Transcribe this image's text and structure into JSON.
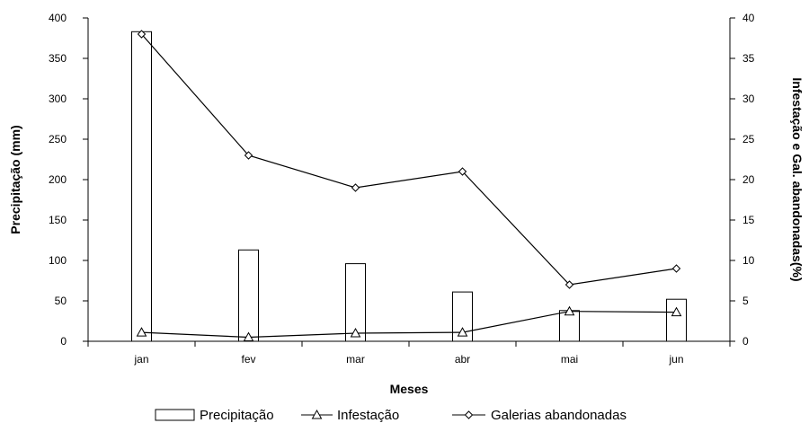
{
  "chart_data": {
    "type": "bar+line",
    "categories": [
      "jan",
      "fev",
      "mar",
      "abr",
      "mai",
      "jun"
    ],
    "series": [
      {
        "name": "Precipitação",
        "type": "bar",
        "axis": "left",
        "values": [
          383,
          113,
          96,
          61,
          38,
          52
        ]
      },
      {
        "name": "Infestação",
        "type": "line",
        "axis": "right",
        "marker": "triangle",
        "values": [
          1.1,
          0.5,
          1.0,
          1.1,
          3.7,
          3.6
        ]
      },
      {
        "name": "Galerias abandonadas",
        "type": "line",
        "axis": "right",
        "marker": "diamond",
        "values": [
          38,
          23,
          19,
          21,
          7,
          9
        ]
      }
    ],
    "xlabel": "Meses",
    "ylabel": "Precipitação (mm)",
    "y2label": "Infestação e Gal. abandonadas(%)",
    "ylim": [
      0,
      400
    ],
    "yticks": [
      0,
      50,
      100,
      150,
      200,
      250,
      300,
      350,
      400
    ],
    "y2lim": [
      0,
      40
    ],
    "y2ticks": [
      0,
      5,
      10,
      15,
      20,
      25,
      30,
      35,
      40
    ],
    "grid": false,
    "legend_position": "bottom",
    "colors": {
      "bar_fill": "#ffffff",
      "stroke": "#000000"
    }
  }
}
